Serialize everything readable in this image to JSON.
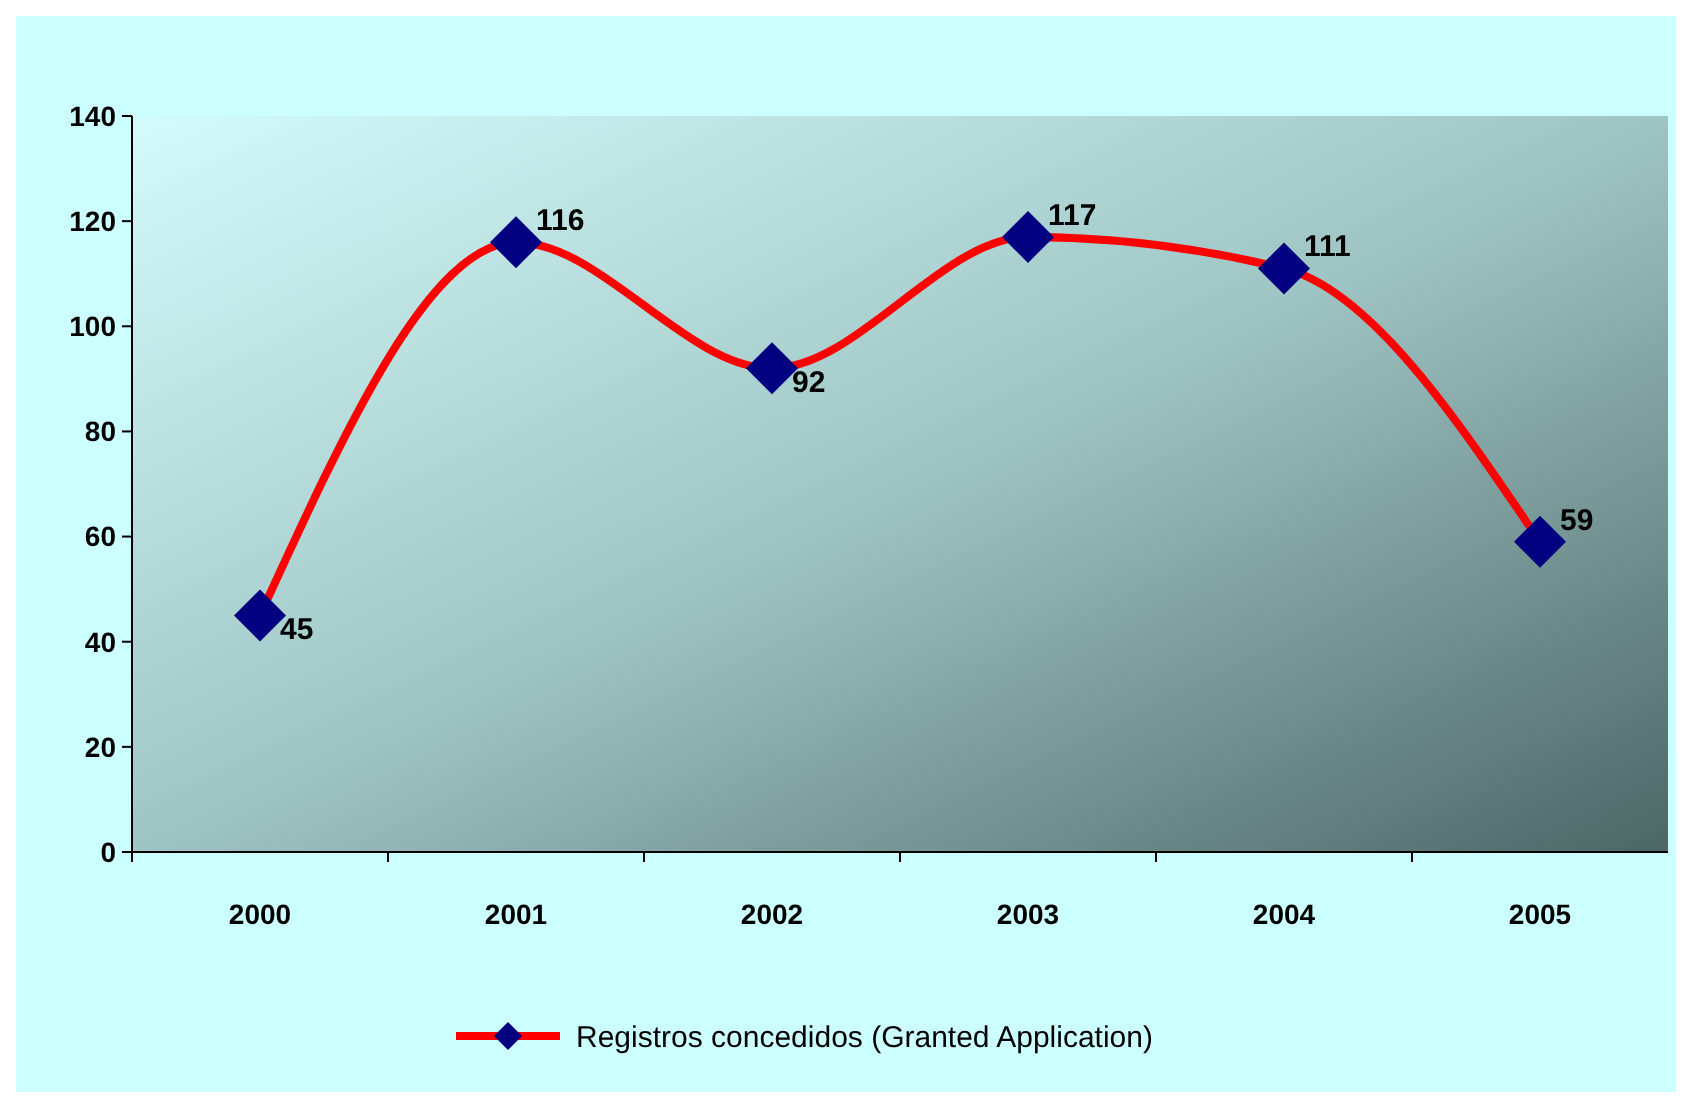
{
  "chart_data": {
    "type": "line",
    "categories": [
      "2000",
      "2001",
      "2002",
      "2003",
      "2004",
      "2005"
    ],
    "series": [
      {
        "name": "Registros concedidos (Granted Application)",
        "color": "#ff0000",
        "values": [
          45,
          116,
          92,
          117,
          111,
          59
        ]
      }
    ],
    "ylim": [
      0,
      140
    ],
    "yticks": [
      0,
      20,
      40,
      60,
      80,
      100,
      120,
      140
    ],
    "grid": false,
    "legend": "bottom",
    "marker": "diamond",
    "line_style": "solid",
    "data_labels": true
  }
}
